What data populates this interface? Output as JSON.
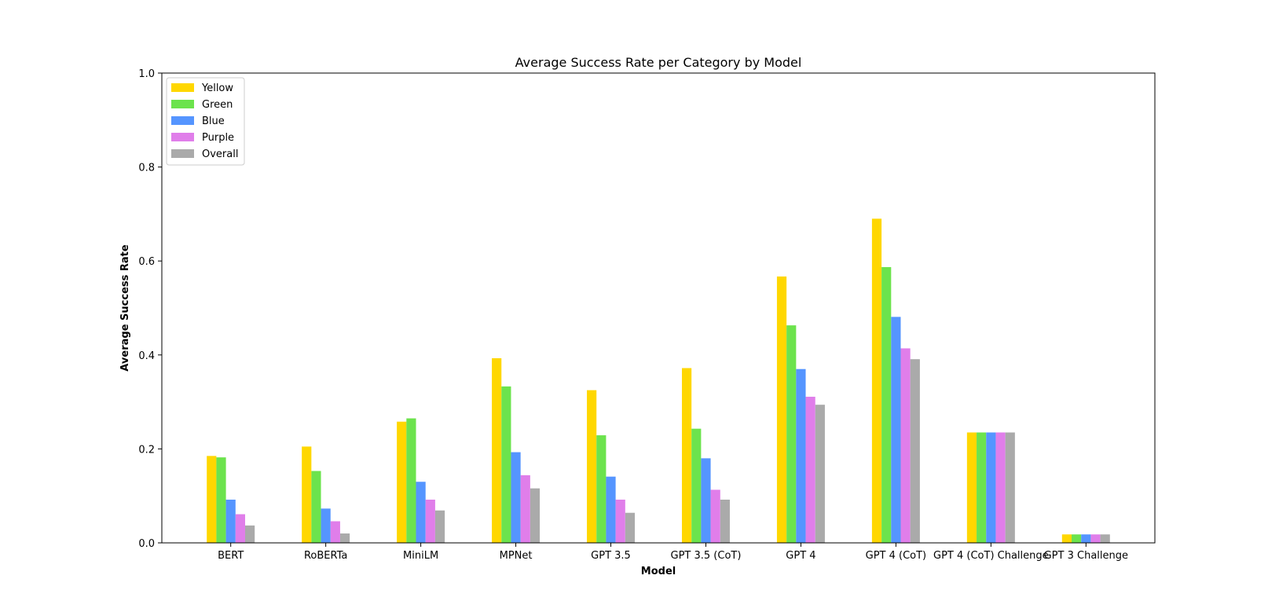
{
  "chart_data": {
    "type": "bar",
    "title": "Average Success Rate per Category by Model",
    "xlabel": "Model",
    "ylabel": "Average Success Rate",
    "ylim": [
      0,
      1.0
    ],
    "yticks": [
      "0.0",
      "0.2",
      "0.4",
      "0.6",
      "0.8",
      "1.0"
    ],
    "grid": false,
    "legend_position": "top-left",
    "categories": [
      "BERT",
      "RoBERTa",
      "MiniLM",
      "MPNet",
      "GPT 3.5",
      "GPT 3.5 (CoT)",
      "GPT 4",
      "GPT 4 (CoT)",
      "GPT 4 (CoT) Challenge",
      "GPT 3 Challenge"
    ],
    "series": [
      {
        "name": "Yellow",
        "color": "#FFD700",
        "values": [
          0.185,
          0.205,
          0.258,
          0.393,
          0.325,
          0.372,
          0.567,
          0.69,
          0.235,
          0.018
        ]
      },
      {
        "name": "Green",
        "color": "#6CE34D",
        "values": [
          0.182,
          0.153,
          0.265,
          0.333,
          0.229,
          0.243,
          0.463,
          0.587,
          0.235,
          0.018
        ]
      },
      {
        "name": "Blue",
        "color": "#5595FF",
        "values": [
          0.092,
          0.073,
          0.13,
          0.193,
          0.141,
          0.18,
          0.37,
          0.481,
          0.235,
          0.018
        ]
      },
      {
        "name": "Purple",
        "color": "#E07EEA",
        "values": [
          0.061,
          0.046,
          0.092,
          0.144,
          0.092,
          0.113,
          0.311,
          0.414,
          0.235,
          0.018
        ]
      },
      {
        "name": "Overall",
        "color": "#AAAAAA",
        "values": [
          0.037,
          0.02,
          0.069,
          0.116,
          0.064,
          0.092,
          0.294,
          0.391,
          0.235,
          0.018
        ]
      }
    ]
  }
}
